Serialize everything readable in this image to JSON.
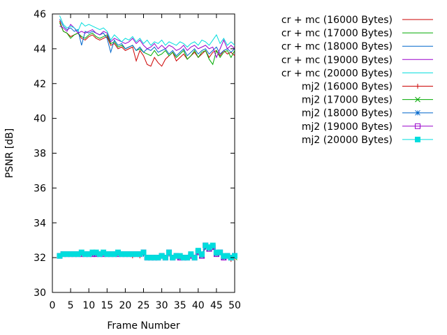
{
  "chart_data": {
    "type": "line",
    "title": "",
    "xlabel": "Frame Number",
    "ylabel": "PSNR [dB]",
    "xlim": [
      0,
      50
    ],
    "ylim": [
      30,
      46
    ],
    "xticks": [
      0,
      5,
      10,
      15,
      20,
      25,
      30,
      35,
      40,
      45,
      50
    ],
    "yticks": [
      30,
      32,
      34,
      36,
      38,
      40,
      42,
      44,
      46
    ],
    "grid": false,
    "legend_position": "outside-right-top",
    "x": [
      2,
      3,
      4,
      5,
      6,
      7,
      8,
      9,
      10,
      11,
      12,
      13,
      14,
      15,
      16,
      17,
      18,
      19,
      20,
      21,
      22,
      23,
      24,
      25,
      26,
      27,
      28,
      29,
      30,
      31,
      32,
      33,
      34,
      35,
      36,
      37,
      38,
      39,
      40,
      41,
      42,
      43,
      44,
      45,
      46,
      47,
      48,
      49,
      50
    ],
    "series": [
      {
        "name": "cr + mc (16000 Bytes)",
        "color": "#cc0000",
        "marker": "none",
        "values": [
          45.6,
          45.0,
          44.9,
          44.7,
          44.8,
          44.9,
          44.6,
          44.5,
          44.7,
          44.8,
          44.6,
          44.5,
          44.6,
          44.7,
          44.2,
          44.3,
          44.0,
          44.1,
          43.9,
          44.0,
          44.1,
          43.3,
          43.9,
          43.6,
          43.1,
          43.0,
          43.5,
          43.2,
          43.0,
          43.4,
          43.6,
          43.8,
          43.3,
          43.5,
          43.7,
          43.4,
          43.6,
          43.8,
          43.5,
          43.7,
          43.9,
          43.5,
          43.8,
          43.9,
          43.6,
          43.9,
          43.7,
          43.8,
          43.6
        ]
      },
      {
        "name": "cr + mc (17000 Bytes)",
        "color": "#00aa00",
        "marker": "none",
        "values": [
          45.5,
          45.0,
          44.9,
          44.6,
          44.8,
          44.9,
          44.7,
          44.6,
          44.8,
          44.9,
          44.7,
          44.6,
          44.7,
          44.8,
          44.3,
          44.4,
          44.1,
          44.2,
          44.0,
          44.1,
          44.2,
          43.9,
          44.0,
          43.8,
          43.7,
          43.6,
          43.9,
          43.6,
          43.7,
          43.9,
          43.6,
          43.8,
          43.5,
          43.7,
          43.9,
          43.4,
          43.6,
          43.9,
          43.5,
          43.8,
          43.9,
          43.4,
          43.1,
          43.9,
          43.5,
          43.8,
          43.9,
          43.5,
          43.9
        ]
      },
      {
        "name": "cr + mc (18000 Bytes)",
        "color": "#0066cc",
        "marker": "none",
        "values": [
          45.7,
          45.3,
          45.1,
          45.2,
          45.0,
          45.1,
          44.2,
          45.0,
          44.9,
          45.0,
          44.9,
          44.8,
          44.9,
          44.6,
          43.8,
          44.5,
          44.2,
          44.3,
          44.0,
          44.1,
          44.2,
          43.9,
          44.1,
          43.8,
          44.0,
          43.9,
          44.1,
          43.8,
          43.9,
          44.0,
          43.7,
          43.9,
          43.6,
          43.8,
          44.0,
          43.6,
          43.8,
          44.0,
          43.7,
          43.9,
          44.0,
          43.7,
          43.9,
          44.1,
          43.7,
          43.9,
          44.0,
          43.8,
          44.0
        ]
      },
      {
        "name": "cr + mc (19000 Bytes)",
        "color": "#9900cc",
        "marker": "none",
        "values": [
          45.3,
          45.2,
          45.0,
          45.4,
          45.2,
          44.9,
          45.0,
          44.9,
          45.0,
          45.1,
          44.9,
          44.8,
          45.0,
          44.9,
          44.4,
          44.6,
          44.5,
          44.4,
          44.3,
          44.4,
          44.6,
          44.3,
          44.5,
          44.2,
          44.0,
          44.1,
          44.3,
          44.0,
          44.2,
          44.0,
          44.2,
          44.1,
          43.9,
          44.0,
          44.2,
          43.9,
          44.1,
          44.2,
          44.0,
          44.1,
          44.2,
          44.0,
          44.1,
          43.5,
          44.0,
          44.5,
          44.0,
          44.2,
          44.0
        ]
      },
      {
        "name": "cr + mc (20000 Bytes)",
        "color": "#00dddd",
        "marker": "none",
        "values": [
          45.9,
          45.4,
          45.2,
          45.3,
          45.2,
          45.0,
          45.5,
          45.3,
          45.4,
          45.3,
          45.2,
          45.1,
          45.2,
          45.0,
          44.5,
          44.8,
          44.6,
          44.4,
          44.6,
          44.5,
          44.7,
          44.4,
          44.6,
          44.3,
          44.5,
          44.2,
          44.4,
          44.3,
          44.5,
          44.2,
          44.4,
          44.3,
          44.2,
          44.4,
          44.3,
          44.1,
          44.3,
          44.4,
          44.2,
          44.5,
          44.4,
          44.2,
          44.5,
          44.8,
          44.3,
          44.6,
          44.2,
          44.4,
          44.2
        ]
      },
      {
        "name": "mj2 (16000 Bytes)",
        "color": "#cc0000",
        "marker": "plus",
        "values": [
          32.1,
          32.2,
          32.2,
          32.2,
          32.2,
          32.2,
          32.2,
          32.2,
          32.2,
          32.2,
          32.2,
          32.2,
          32.2,
          32.2,
          32.2,
          32.2,
          32.2,
          32.2,
          32.2,
          32.2,
          32.1,
          32.2,
          32.1,
          32.2,
          32.0,
          32.0,
          32.0,
          32.0,
          32.1,
          32.0,
          32.2,
          32.0,
          32.1,
          32.0,
          32.0,
          32.0,
          32.1,
          32.0,
          32.3,
          32.1,
          32.6,
          32.5,
          32.6,
          32.2,
          32.3,
          32.0,
          32.1,
          31.9,
          32.0
        ]
      },
      {
        "name": "mj2 (17000 Bytes)",
        "color": "#00aa00",
        "marker": "cross",
        "values": [
          32.1,
          32.2,
          32.2,
          32.2,
          32.2,
          32.2,
          32.2,
          32.2,
          32.2,
          32.2,
          32.2,
          32.2,
          32.2,
          32.2,
          32.2,
          32.2,
          32.2,
          32.2,
          32.2,
          32.2,
          32.2,
          32.2,
          32.2,
          32.2,
          32.0,
          32.0,
          32.0,
          32.0,
          32.1,
          32.0,
          32.2,
          32.0,
          32.1,
          32.0,
          32.0,
          32.0,
          32.1,
          32.0,
          32.3,
          32.1,
          32.6,
          32.5,
          32.6,
          32.2,
          32.3,
          32.0,
          32.1,
          32.0,
          32.0
        ]
      },
      {
        "name": "mj2 (18000 Bytes)",
        "color": "#0066cc",
        "marker": "star",
        "values": [
          32.1,
          32.2,
          32.2,
          32.2,
          32.2,
          32.2,
          32.2,
          32.2,
          32.2,
          32.2,
          32.2,
          32.2,
          32.2,
          32.2,
          32.2,
          32.2,
          32.2,
          32.2,
          32.2,
          32.2,
          32.2,
          32.2,
          32.2,
          32.2,
          32.0,
          32.0,
          32.0,
          32.0,
          32.1,
          32.0,
          32.2,
          32.0,
          32.1,
          32.0,
          32.0,
          32.0,
          32.1,
          32.0,
          32.3,
          32.1,
          32.6,
          32.5,
          32.6,
          32.2,
          32.3,
          32.0,
          32.1,
          32.0,
          32.1
        ]
      },
      {
        "name": "mj2 (19000 Bytes)",
        "color": "#9900cc",
        "marker": "open-square",
        "values": [
          32.1,
          32.2,
          32.2,
          32.2,
          32.2,
          32.2,
          32.2,
          32.2,
          32.2,
          32.2,
          32.2,
          32.2,
          32.2,
          32.2,
          32.2,
          32.2,
          32.2,
          32.2,
          32.2,
          32.2,
          32.2,
          32.2,
          32.2,
          32.3,
          32.0,
          32.0,
          32.0,
          32.0,
          32.1,
          32.0,
          32.3,
          32.0,
          32.1,
          32.0,
          32.0,
          32.0,
          32.1,
          32.0,
          32.3,
          32.1,
          32.7,
          32.5,
          32.6,
          32.2,
          32.3,
          32.0,
          32.1,
          32.0,
          32.1
        ]
      },
      {
        "name": "mj2 (20000 Bytes)",
        "color": "#00dddd",
        "marker": "filled-square",
        "values": [
          32.1,
          32.2,
          32.2,
          32.2,
          32.2,
          32.2,
          32.3,
          32.2,
          32.2,
          32.3,
          32.3,
          32.2,
          32.3,
          32.2,
          32.2,
          32.2,
          32.3,
          32.2,
          32.2,
          32.2,
          32.2,
          32.2,
          32.2,
          32.3,
          32.0,
          32.0,
          32.0,
          32.0,
          32.1,
          32.0,
          32.3,
          32.0,
          32.1,
          32.1,
          32.0,
          32.0,
          32.2,
          32.0,
          32.4,
          32.2,
          32.7,
          32.6,
          32.7,
          32.3,
          32.3,
          32.1,
          32.1,
          32.0,
          32.1
        ]
      }
    ]
  }
}
